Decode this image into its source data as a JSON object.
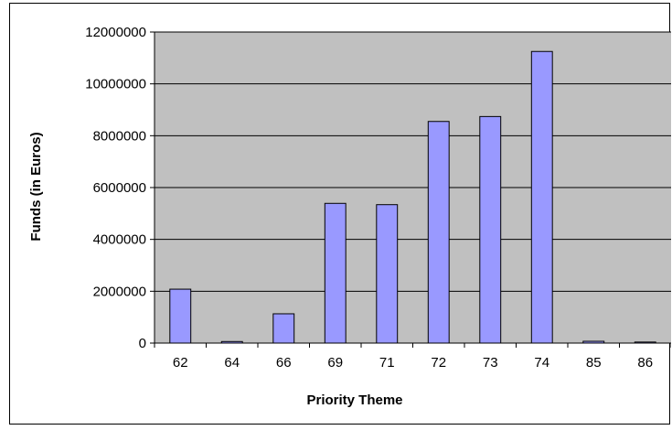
{
  "chart_data": {
    "type": "bar",
    "title": "",
    "xlabel": "Priority Theme",
    "ylabel": "Funds (in Euros)",
    "categories": [
      "62",
      "64",
      "66",
      "69",
      "71",
      "72",
      "73",
      "74",
      "85",
      "86"
    ],
    "values": [
      2080000,
      60000,
      1130000,
      5390000,
      5340000,
      8550000,
      8740000,
      11250000,
      70000,
      40000
    ],
    "ylim": [
      0,
      12000000
    ],
    "yticks": [
      0,
      2000000,
      4000000,
      6000000,
      8000000,
      10000000,
      12000000
    ],
    "ytick_labels": [
      "0",
      "2000000",
      "4000000",
      "6000000",
      "8000000",
      "10000000",
      "12000000"
    ],
    "grid": true,
    "legend": "none",
    "colors": {
      "bar_fill": "#9999ff",
      "bar_stroke": "#000000",
      "plot_background": "#c0c0c0",
      "gridline": "#000000"
    }
  }
}
